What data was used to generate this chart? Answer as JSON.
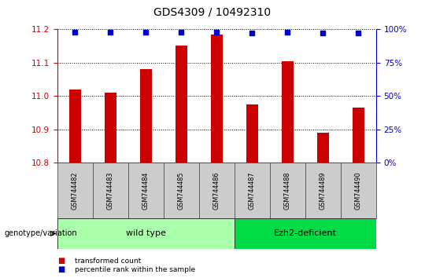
{
  "title": "GDS4309 / 10492310",
  "samples": [
    "GSM744482",
    "GSM744483",
    "GSM744484",
    "GSM744485",
    "GSM744486",
    "GSM744487",
    "GSM744488",
    "GSM744489",
    "GSM744490"
  ],
  "transformed_count": [
    11.02,
    11.01,
    11.08,
    11.15,
    11.185,
    10.975,
    11.103,
    10.89,
    10.965
  ],
  "percentile_rank": [
    98,
    98,
    98,
    98,
    98,
    97,
    98,
    97,
    97
  ],
  "ylim_left": [
    10.8,
    11.2
  ],
  "ylim_right": [
    0,
    100
  ],
  "yticks_left": [
    10.8,
    10.9,
    11.0,
    11.1,
    11.2
  ],
  "yticks_right": [
    0,
    25,
    50,
    75,
    100
  ],
  "bar_color": "#cc0000",
  "dot_color": "#0000cc",
  "bar_width": 0.35,
  "groups": [
    {
      "label": "wild type",
      "start": 0,
      "end": 4,
      "color": "#aaffaa"
    },
    {
      "label": "Ezh2-deficient",
      "start": 5,
      "end": 8,
      "color": "#00dd44"
    }
  ],
  "group_label_prefix": "genotype/variation",
  "legend_items": [
    {
      "label": "transformed count",
      "color": "#cc0000"
    },
    {
      "label": "percentile rank within the sample",
      "color": "#0000cc"
    }
  ],
  "background_color": "#ffffff",
  "tick_color_left": "#cc0000",
  "tick_color_right": "#0000cc",
  "xticklabel_bg": "#cccccc",
  "title_fontsize": 10
}
